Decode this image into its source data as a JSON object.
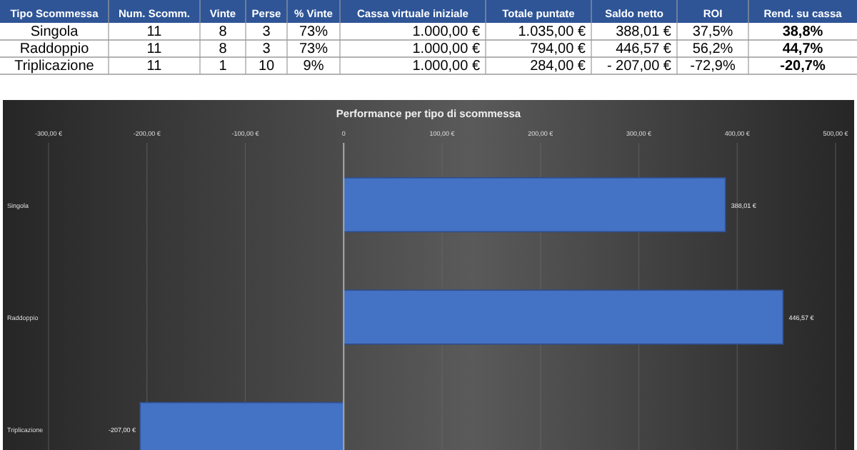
{
  "chart_data": [
    {
      "type": "other",
      "categories": [
        "Tipo Scommessa",
        "Num. Scomm.",
        "Vinte",
        "Perse",
        "% Vinte",
        "Cassa virtuale iniziale",
        "Totale puntate",
        "Saldo netto",
        "ROI",
        "Rend. su cassa"
      ],
      "y_categories": [
        "Singola",
        "Raddoppio",
        "Triplicazione"
      ],
      "cell_labels": [
        [
          "11",
          "8",
          "3",
          "73%",
          "1.000,00 €",
          "1.035,00 €",
          "388,01 €",
          "37,5%",
          "38,8%"
        ],
        [
          "11",
          "8",
          "3",
          "73%",
          "1.000,00 €",
          "794,00 €",
          "446,57 €",
          "56,2%",
          "44,7%"
        ],
        [
          "11",
          "1",
          "10",
          "9%",
          "1.000,00 €",
          "284,00 €",
          "- 207,00 €",
          "-72,9%",
          "-20,7%"
        ]
      ]
    },
    {
      "type": "bar",
      "orientation": "horizontal",
      "title": "Performance per tipo di scommessa",
      "categories": [
        "Singola",
        "Raddoppio",
        "Triplicazione"
      ],
      "values": [
        388.01,
        446.57,
        -207
      ],
      "value_labels": [
        "388,01 €",
        "446,57 €",
        "-207,00 €"
      ],
      "color": "#4472c4",
      "xlim": [
        -300,
        500
      ],
      "xticks": [
        {
          "value": -300,
          "label": "-300,00 €"
        },
        {
          "value": -200,
          "label": "-200,00 €"
        },
        {
          "value": -100,
          "label": "-100,00 €"
        },
        {
          "value": 0,
          "label": "0"
        },
        {
          "value": 100,
          "label": "100,00 €"
        },
        {
          "value": 200,
          "label": "200,00 €"
        },
        {
          "value": 300,
          "label": "300,00 €"
        },
        {
          "value": 400,
          "label": "400,00 €"
        },
        {
          "value": 500,
          "label": "500,00 €"
        }
      ],
      "grid": "x"
    }
  ]
}
